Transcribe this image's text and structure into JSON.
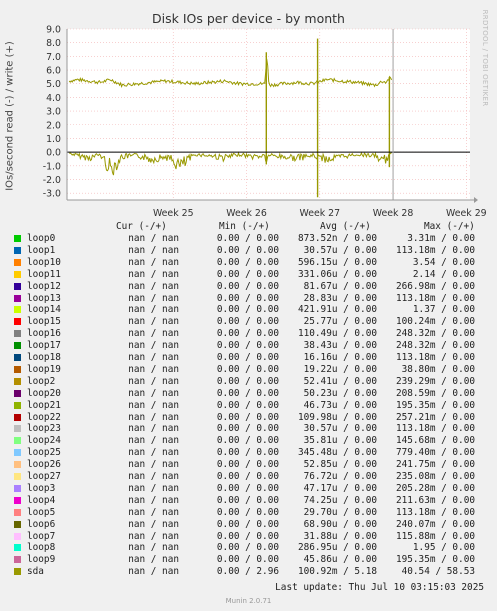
{
  "title": "Disk IOs per device - by month",
  "side_label": "RRDTOOL / TOBI OETIKER",
  "footer": {
    "last_update": "Last update: Thu Jul 10 03:15:03 2025",
    "munin": "Munin 2.0.71"
  },
  "legend_header": {
    "cur": "Cur (-/+)",
    "min": "Min (-/+)",
    "avg": "Avg (-/+)",
    "max": "Max (-/+)"
  },
  "legend": [
    {
      "name": "loop0",
      "color": "#00cc00",
      "cur_r": "nan",
      "cur_w": "nan",
      "min_r": "0.00",
      "min_w": "0.00",
      "avg_r": "873.52n",
      "avg_w": "0.00",
      "max_r": "3.31m",
      "max_w": "0.00"
    },
    {
      "name": "loop1",
      "color": "#0066b3",
      "cur_r": "nan",
      "cur_w": "nan",
      "min_r": "0.00",
      "min_w": "0.00",
      "avg_r": "30.57u",
      "avg_w": "0.00",
      "max_r": "113.18m",
      "max_w": "0.00"
    },
    {
      "name": "loop10",
      "color": "#ff8000",
      "cur_r": "nan",
      "cur_w": "nan",
      "min_r": "0.00",
      "min_w": "0.00",
      "avg_r": "596.15u",
      "avg_w": "0.00",
      "max_r": "3.54",
      "max_w": "0.00"
    },
    {
      "name": "loop11",
      "color": "#ffcc00",
      "cur_r": "nan",
      "cur_w": "nan",
      "min_r": "0.00",
      "min_w": "0.00",
      "avg_r": "331.06u",
      "avg_w": "0.00",
      "max_r": "2.14",
      "max_w": "0.00"
    },
    {
      "name": "loop12",
      "color": "#330099",
      "cur_r": "nan",
      "cur_w": "nan",
      "min_r": "0.00",
      "min_w": "0.00",
      "avg_r": "81.67u",
      "avg_w": "0.00",
      "max_r": "266.98m",
      "max_w": "0.00"
    },
    {
      "name": "loop13",
      "color": "#990099",
      "cur_r": "nan",
      "cur_w": "nan",
      "min_r": "0.00",
      "min_w": "0.00",
      "avg_r": "28.83u",
      "avg_w": "0.00",
      "max_r": "113.18m",
      "max_w": "0.00"
    },
    {
      "name": "loop14",
      "color": "#ccff00",
      "cur_r": "nan",
      "cur_w": "nan",
      "min_r": "0.00",
      "min_w": "0.00",
      "avg_r": "421.91u",
      "avg_w": "0.00",
      "max_r": "1.37",
      "max_w": "0.00"
    },
    {
      "name": "loop15",
      "color": "#ff0000",
      "cur_r": "nan",
      "cur_w": "nan",
      "min_r": "0.00",
      "min_w": "0.00",
      "avg_r": "25.77u",
      "avg_w": "0.00",
      "max_r": "100.24m",
      "max_w": "0.00"
    },
    {
      "name": "loop16",
      "color": "#808080",
      "cur_r": "nan",
      "cur_w": "nan",
      "min_r": "0.00",
      "min_w": "0.00",
      "avg_r": "110.49u",
      "avg_w": "0.00",
      "max_r": "248.32m",
      "max_w": "0.00"
    },
    {
      "name": "loop17",
      "color": "#008f00",
      "cur_r": "nan",
      "cur_w": "nan",
      "min_r": "0.00",
      "min_w": "0.00",
      "avg_r": "38.43u",
      "avg_w": "0.00",
      "max_r": "248.32m",
      "max_w": "0.00"
    },
    {
      "name": "loop18",
      "color": "#00487d",
      "cur_r": "nan",
      "cur_w": "nan",
      "min_r": "0.00",
      "min_w": "0.00",
      "avg_r": "16.16u",
      "avg_w": "0.00",
      "max_r": "113.18m",
      "max_w": "0.00"
    },
    {
      "name": "loop19",
      "color": "#b35a00",
      "cur_r": "nan",
      "cur_w": "nan",
      "min_r": "0.00",
      "min_w": "0.00",
      "avg_r": "19.22u",
      "avg_w": "0.00",
      "max_r": "38.80m",
      "max_w": "0.00"
    },
    {
      "name": "loop2",
      "color": "#b38f00",
      "cur_r": "nan",
      "cur_w": "nan",
      "min_r": "0.00",
      "min_w": "0.00",
      "avg_r": "52.41u",
      "avg_w": "0.00",
      "max_r": "239.29m",
      "max_w": "0.00"
    },
    {
      "name": "loop20",
      "color": "#6b006b",
      "cur_r": "nan",
      "cur_w": "nan",
      "min_r": "0.00",
      "min_w": "0.00",
      "avg_r": "50.23u",
      "avg_w": "0.00",
      "max_r": "208.59m",
      "max_w": "0.00"
    },
    {
      "name": "loop21",
      "color": "#8fb300",
      "cur_r": "nan",
      "cur_w": "nan",
      "min_r": "0.00",
      "min_w": "0.00",
      "avg_r": "46.73u",
      "avg_w": "0.00",
      "max_r": "195.35m",
      "max_w": "0.00"
    },
    {
      "name": "loop22",
      "color": "#b30000",
      "cur_r": "nan",
      "cur_w": "nan",
      "min_r": "0.00",
      "min_w": "0.00",
      "avg_r": "109.98u",
      "avg_w": "0.00",
      "max_r": "257.21m",
      "max_w": "0.00"
    },
    {
      "name": "loop23",
      "color": "#bebebe",
      "cur_r": "nan",
      "cur_w": "nan",
      "min_r": "0.00",
      "min_w": "0.00",
      "avg_r": "30.57u",
      "avg_w": "0.00",
      "max_r": "113.18m",
      "max_w": "0.00"
    },
    {
      "name": "loop24",
      "color": "#80ff80",
      "cur_r": "nan",
      "cur_w": "nan",
      "min_r": "0.00",
      "min_w": "0.00",
      "avg_r": "35.81u",
      "avg_w": "0.00",
      "max_r": "145.68m",
      "max_w": "0.00"
    },
    {
      "name": "loop25",
      "color": "#80c9ff",
      "cur_r": "nan",
      "cur_w": "nan",
      "min_r": "0.00",
      "min_w": "0.00",
      "avg_r": "345.48u",
      "avg_w": "0.00",
      "max_r": "779.40m",
      "max_w": "0.00"
    },
    {
      "name": "loop26",
      "color": "#ffc080",
      "cur_r": "nan",
      "cur_w": "nan",
      "min_r": "0.00",
      "min_w": "0.00",
      "avg_r": "52.85u",
      "avg_w": "0.00",
      "max_r": "241.75m",
      "max_w": "0.00"
    },
    {
      "name": "loop27",
      "color": "#ffe680",
      "cur_r": "nan",
      "cur_w": "nan",
      "min_r": "0.00",
      "min_w": "0.00",
      "avg_r": "76.72u",
      "avg_w": "0.00",
      "max_r": "235.08m",
      "max_w": "0.00"
    },
    {
      "name": "loop3",
      "color": "#aa80ff",
      "cur_r": "nan",
      "cur_w": "nan",
      "min_r": "0.00",
      "min_w": "0.00",
      "avg_r": "47.17u",
      "avg_w": "0.00",
      "max_r": "205.28m",
      "max_w": "0.00"
    },
    {
      "name": "loop4",
      "color": "#ee00cc",
      "cur_r": "nan",
      "cur_w": "nan",
      "min_r": "0.00",
      "min_w": "0.00",
      "avg_r": "74.25u",
      "avg_w": "0.00",
      "max_r": "211.63m",
      "max_w": "0.00"
    },
    {
      "name": "loop5",
      "color": "#ff8080",
      "cur_r": "nan",
      "cur_w": "nan",
      "min_r": "0.00",
      "min_w": "0.00",
      "avg_r": "29.70u",
      "avg_w": "0.00",
      "max_r": "113.18m",
      "max_w": "0.00"
    },
    {
      "name": "loop6",
      "color": "#666600",
      "cur_r": "nan",
      "cur_w": "nan",
      "min_r": "0.00",
      "min_w": "0.00",
      "avg_r": "68.90u",
      "avg_w": "0.00",
      "max_r": "240.07m",
      "max_w": "0.00"
    },
    {
      "name": "loop7",
      "color": "#ffbfff",
      "cur_r": "nan",
      "cur_w": "nan",
      "min_r": "0.00",
      "min_w": "0.00",
      "avg_r": "31.88u",
      "avg_w": "0.00",
      "max_r": "115.88m",
      "max_w": "0.00"
    },
    {
      "name": "loop8",
      "color": "#00ffcc",
      "cur_r": "nan",
      "cur_w": "nan",
      "min_r": "0.00",
      "min_w": "0.00",
      "avg_r": "286.95u",
      "avg_w": "0.00",
      "max_r": "1.95",
      "max_w": "0.00"
    },
    {
      "name": "loop9",
      "color": "#cc6699",
      "cur_r": "nan",
      "cur_w": "nan",
      "min_r": "0.00",
      "min_w": "0.00",
      "avg_r": "45.86u",
      "avg_w": "0.00",
      "max_r": "195.35m",
      "max_w": "0.00"
    },
    {
      "name": "sda",
      "color": "#999900",
      "cur_r": "nan",
      "cur_w": "nan",
      "min_r": "0.00",
      "min_w": "2.96",
      "avg_r": "100.92m",
      "avg_w": "5.18",
      "max_r": "40.54",
      "max_w": "58.53"
    }
  ],
  "chart_data": {
    "type": "line",
    "title": "Disk IOs per device - by month",
    "ylabel": "IOs/second read (-) / write (+)",
    "ylim": [
      -3.5,
      9.0
    ],
    "yticks": [
      -3.0,
      -2.0,
      -1.0,
      0.0,
      1.0,
      2.0,
      3.0,
      4.0,
      5.0,
      6.0,
      7.0,
      8.0,
      9.0
    ],
    "xticks": [
      "Week 25",
      "Week 26",
      "Week 27",
      "Week 28",
      "Week 29"
    ],
    "xlim_weeks": [
      23.55,
      29.05
    ],
    "grid": true,
    "zero_line": true,
    "now_marker_week": 28.0,
    "series_color": "#999900",
    "series": [
      {
        "name": "sda",
        "x_weeks": [
          23.58,
          23.7,
          23.85,
          24.0,
          24.15,
          24.3,
          24.5,
          24.7,
          24.9,
          25.1,
          25.3,
          25.5,
          25.7,
          25.9,
          26.1,
          26.25,
          26.28,
          26.3,
          26.33,
          26.5,
          26.7,
          26.9,
          27.1,
          27.3,
          27.5,
          27.75,
          27.8,
          27.85,
          27.9,
          27.95,
          27.98
        ],
        "write": [
          5.2,
          5.3,
          5.2,
          5.1,
          5.3,
          4.9,
          5.0,
          5.1,
          5.2,
          5.1,
          5.0,
          5.1,
          5.2,
          5.0,
          5.0,
          5.0,
          7.3,
          5.1,
          4.9,
          5.0,
          5.1,
          5.0,
          5.3,
          5.2,
          5.1,
          4.9,
          5.0,
          5.2,
          5.1,
          5.4,
          5.3
        ],
        "read": [
          -0.1,
          -0.3,
          -0.5,
          -0.2,
          -1.5,
          -0.4,
          -0.3,
          -0.6,
          -0.4,
          -1.2,
          -0.2,
          -0.3,
          -0.5,
          -0.2,
          -0.4,
          -0.3,
          -0.9,
          -0.2,
          -0.3,
          -0.4,
          -0.5,
          -0.3,
          -0.6,
          -0.4,
          -0.2,
          -0.3,
          -0.5,
          -0.9,
          -0.6,
          -0.4,
          -0.1
        ]
      }
    ],
    "spikes": [
      {
        "week": 26.27,
        "write": 7.3,
        "read": -0.9
      },
      {
        "week": 26.97,
        "write": 8.3,
        "read": -3.3
      },
      {
        "week": 27.95,
        "write": 5.5,
        "read": -1.1
      }
    ]
  }
}
